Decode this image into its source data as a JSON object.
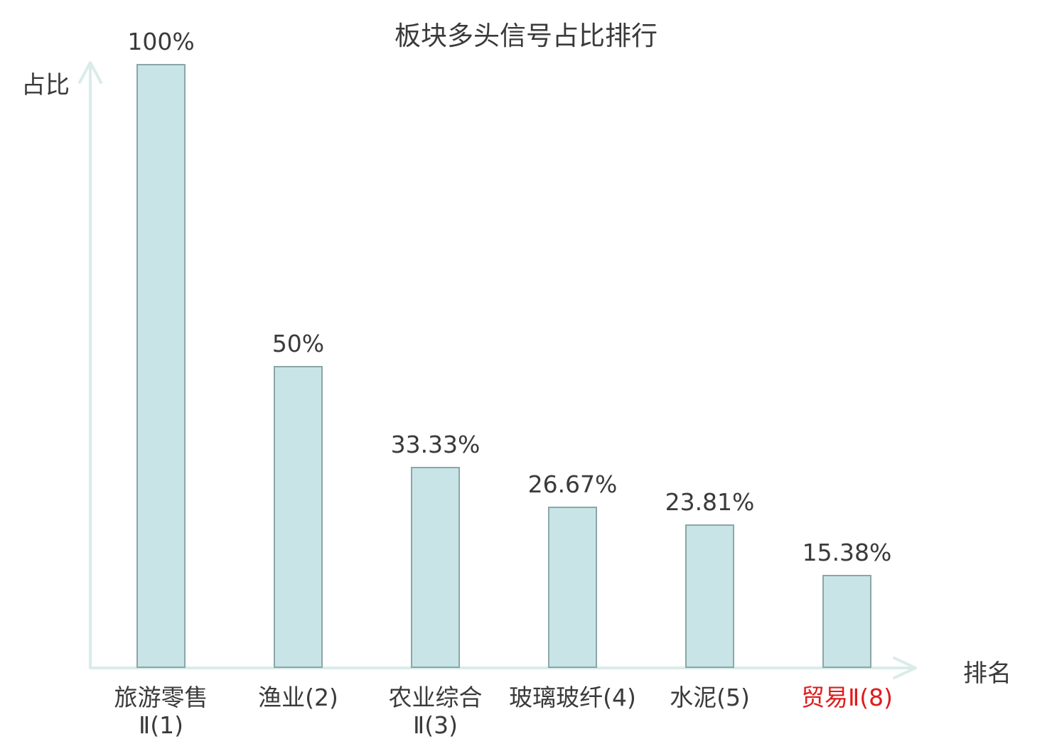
{
  "title": "板块多头信号占比排行",
  "colors": {
    "bar_fill": "#c8e4e7",
    "bar_border": "#8aa6a9",
    "axis": "#d9ece9",
    "text": "#3a3a3a",
    "highlight": "#e01b1b"
  },
  "chart_data": {
    "type": "bar",
    "title": "板块多头信号占比排行",
    "xlabel": "排名",
    "ylabel": "占比",
    "ylim": [
      0,
      100
    ],
    "grid": false,
    "legend": "none",
    "categories": [
      "旅游零售Ⅱ(1)",
      "渔业(2)",
      "农业综合Ⅱ(3)",
      "玻璃玻纤(4)",
      "水泥(5)",
      "贸易Ⅱ(8)"
    ],
    "category_lines": [
      [
        "旅游零售",
        "Ⅱ(1)"
      ],
      [
        "渔业(2)"
      ],
      [
        "农业综合",
        "Ⅱ(3)"
      ],
      [
        "玻璃玻纤(4)"
      ],
      [
        "水泥(5)"
      ],
      [
        "贸易Ⅱ(8)"
      ]
    ],
    "ranks": [
      1,
      2,
      3,
      4,
      5,
      8
    ],
    "values": [
      100,
      50,
      33.33,
      26.67,
      23.81,
      15.38
    ],
    "value_labels": [
      "100%",
      "50%",
      "33.33%",
      "26.67%",
      "23.81%",
      "15.38%"
    ],
    "highlighted_category_index": 5
  }
}
